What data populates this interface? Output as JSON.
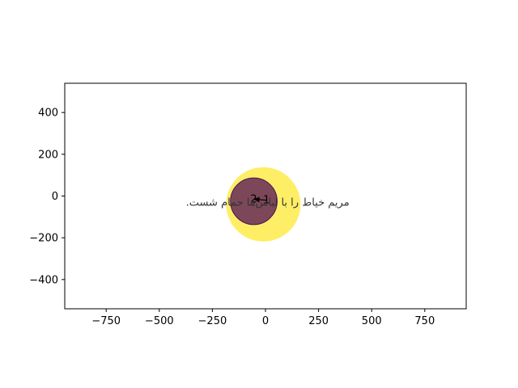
{
  "chart_data": {
    "type": "scatter",
    "title": "",
    "xlabel": "",
    "ylabel": "",
    "xlim": [
      -945,
      945
    ],
    "ylim": [
      -540,
      540
    ],
    "x_ticks": [
      -750,
      -500,
      -250,
      0,
      250,
      500,
      750
    ],
    "y_ticks": [
      -400,
      -200,
      0,
      200,
      400
    ],
    "x_tick_labels": [
      "−750",
      "−500",
      "−250",
      "0",
      "250",
      "500",
      "750"
    ],
    "y_tick_labels": [
      "−400",
      "−200",
      "0",
      "200",
      "400"
    ],
    "grid": false,
    "circles": [
      {
        "label": "",
        "x": -10,
        "y": -40,
        "r": 175,
        "color": "#FDE725",
        "alpha": 0.7
      },
      {
        "label": "",
        "x": -55,
        "y": -25,
        "r": 110,
        "color": "#440154",
        "alpha": 0.7
      }
    ],
    "points": [
      {
        "label": "2",
        "x": -55,
        "y": -15
      },
      {
        "label": "1",
        "x": 5,
        "y": -20
      }
    ],
    "edges": [
      {
        "from": 0,
        "to": 1
      }
    ],
    "annotation": {
      "text": "مریم خیاط را با لباس‌ها حمام شست.",
      "x": 10,
      "y": -30
    }
  }
}
